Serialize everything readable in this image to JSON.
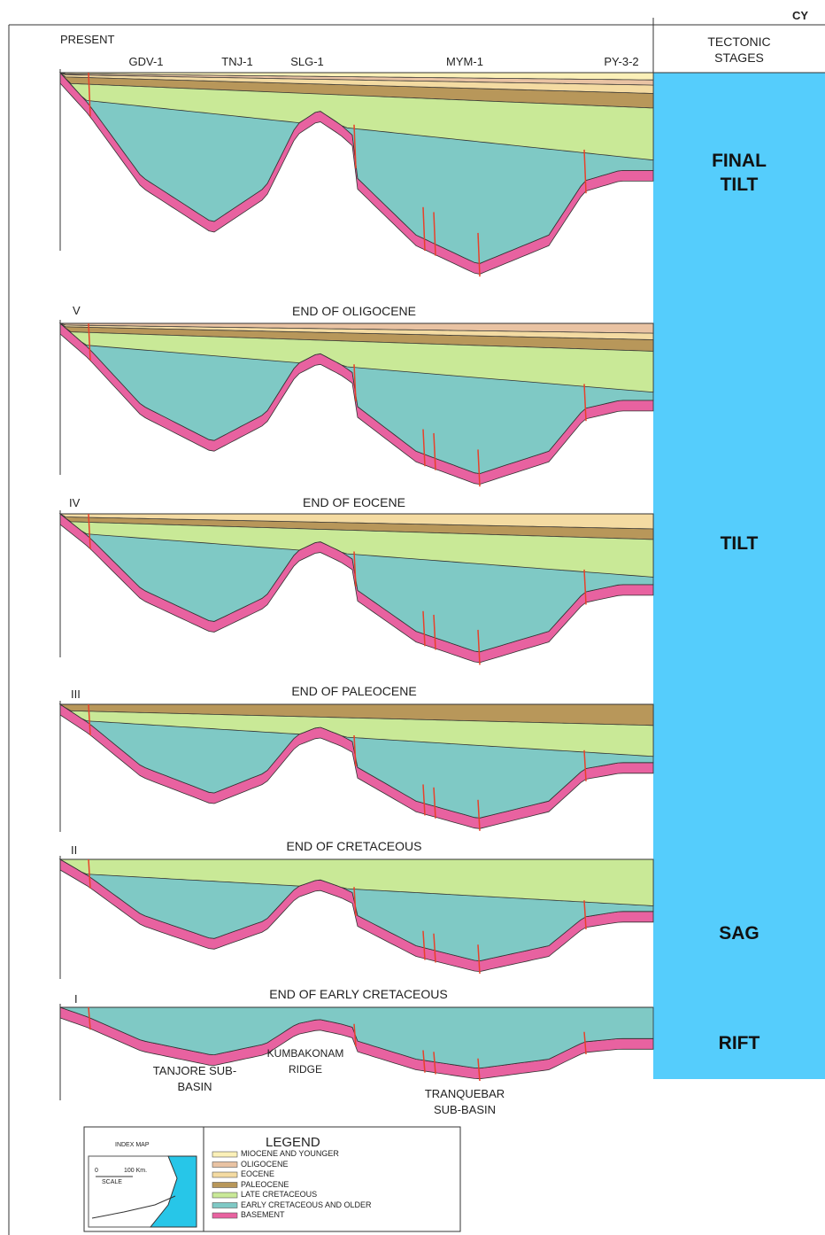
{
  "header": {
    "corner_label": "CY",
    "present": "PRESENT",
    "stages_title": "TECTONIC STAGES",
    "wells": [
      "GDV-1",
      "TNJ-1",
      "SLG-1",
      "MYM-1",
      "PY-3-2"
    ]
  },
  "stages": [
    "FINAL TILT",
    "TILT",
    "SAG",
    "RIFT"
  ],
  "sections": [
    {
      "label": "V",
      "title": "END OF OLIGOCENE"
    },
    {
      "label": "IV",
      "title": "END OF EOCENE"
    },
    {
      "label": "III",
      "title": "END OF PALEOCENE"
    },
    {
      "label": "II",
      "title": "END OF CRETACEOUS"
    },
    {
      "label": "I",
      "title": "END OF EARLY CRETACEOUS"
    }
  ],
  "features": [
    "TANJORE SUB-BASIN",
    "KUMBAKONAM RIDGE",
    "TRANQUEBAR SUB-BASIN"
  ],
  "index_map": {
    "title": "INDEX MAP",
    "scale": "SCALE",
    "scale_start": "0",
    "scale_end": "100 Km."
  },
  "legend": {
    "title": "LEGEND",
    "items": [
      {
        "label": "MIOCENE AND YOUNGER",
        "color": "#fbf0b8"
      },
      {
        "label": "OLIGOCENE",
        "color": "#e9c3a3"
      },
      {
        "label": "EOCENE",
        "color": "#f4dba2"
      },
      {
        "label": "PALEOCENE",
        "color": "#b8975a"
      },
      {
        "label": "LATE CRETACEOUS",
        "color": "#c9e997"
      },
      {
        "label": "EARLY CRETACEOUS AND OLDER",
        "color": "#7fc9c5"
      },
      {
        "label": "BASEMENT",
        "color": "#e862a0"
      }
    ]
  }
}
